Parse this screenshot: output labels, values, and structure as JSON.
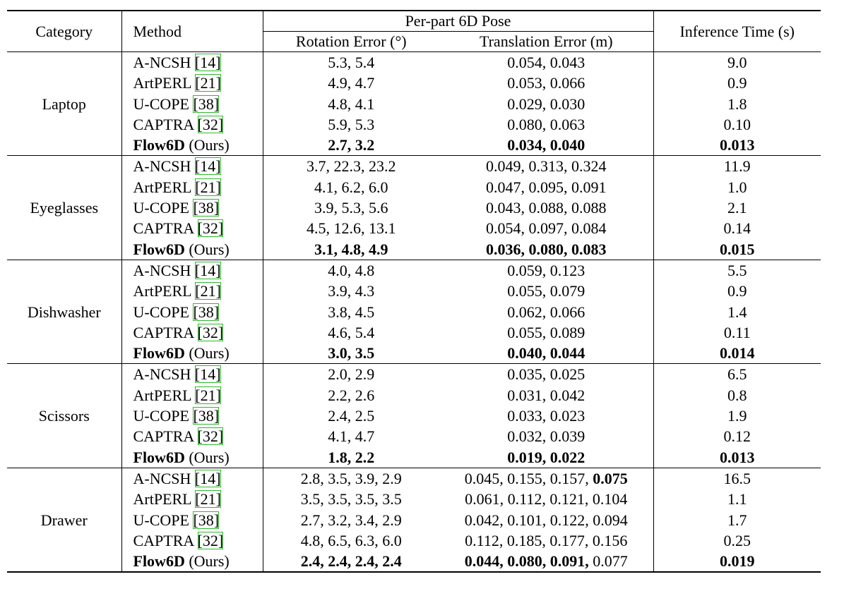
{
  "header": {
    "category": "Category",
    "method": "Method",
    "pose": "Per-part 6D Pose",
    "rotation": "Rotation Error (°)",
    "translation": "Translation Error (m)",
    "time": "Inference Time (s)"
  },
  "groups": [
    {
      "category": "Laptop",
      "rows": [
        {
          "method": [
            {
              "text": "A-NCSH "
            },
            {
              "text": "[14]",
              "cite": true
            }
          ],
          "rotation": "5.3, 5.4",
          "translation": "0.054, 0.043",
          "time": "9.0"
        },
        {
          "method": [
            {
              "text": "ArtPERL "
            },
            {
              "text": "[21]",
              "cite": true
            }
          ],
          "rotation": "4.9, 4.7",
          "translation": "0.053, 0.066",
          "time": "0.9"
        },
        {
          "method": [
            {
              "text": "U-COPE "
            },
            {
              "text": "[38]",
              "cite": true
            }
          ],
          "rotation": "4.8, 4.1",
          "translation": "0.029, 0.030",
          "time": "1.8"
        },
        {
          "method": [
            {
              "text": "CAPTRA "
            },
            {
              "text": "[32]",
              "cite": true
            }
          ],
          "rotation": "5.9, 5.3",
          "translation": "0.080, 0.063",
          "time": "0.10"
        },
        {
          "method": [
            {
              "text": "Flow6D",
              "bold": true
            },
            {
              "text": " (Ours)"
            }
          ],
          "bold": true,
          "rotation": "2.7, 3.2",
          "translation": "0.034, 0.040",
          "time": "0.013"
        }
      ]
    },
    {
      "category": "Eyeglasses",
      "rows": [
        {
          "method": [
            {
              "text": "A-NCSH "
            },
            {
              "text": "[14]",
              "cite": true
            }
          ],
          "rotation": "3.7, 22.3, 23.2",
          "translation": "0.049, 0.313, 0.324",
          "time": "11.9"
        },
        {
          "method": [
            {
              "text": "ArtPERL "
            },
            {
              "text": "[21]",
              "cite": true
            }
          ],
          "rotation": "4.1, 6.2, 6.0",
          "translation": "0.047, 0.095, 0.091",
          "time": "1.0"
        },
        {
          "method": [
            {
              "text": "U-COPE "
            },
            {
              "text": "[38]",
              "cite": true
            }
          ],
          "rotation": "3.9, 5.3, 5.6",
          "translation": "0.043, 0.088, 0.088",
          "time": "2.1"
        },
        {
          "method": [
            {
              "text": "CAPTRA "
            },
            {
              "text": "[32]",
              "cite": true
            }
          ],
          "rotation": "4.5, 12.6, 13.1",
          "translation": "0.054, 0.097, 0.084",
          "time": "0.14"
        },
        {
          "method": [
            {
              "text": "Flow6D",
              "bold": true
            },
            {
              "text": " (Ours)"
            }
          ],
          "bold": true,
          "rotation": "3.1, 4.8, 4.9",
          "translation": "0.036, 0.080, 0.083",
          "time": "0.015"
        }
      ]
    },
    {
      "category": "Dishwasher",
      "rows": [
        {
          "method": [
            {
              "text": "A-NCSH "
            },
            {
              "text": "[14]",
              "cite": true
            }
          ],
          "rotation": "4.0, 4.8",
          "translation": "0.059, 0.123",
          "time": "5.5"
        },
        {
          "method": [
            {
              "text": "ArtPERL "
            },
            {
              "text": "[21]",
              "cite": true
            }
          ],
          "rotation": "3.9, 4.3",
          "translation": "0.055, 0.079",
          "time": "0.9"
        },
        {
          "method": [
            {
              "text": "U-COPE "
            },
            {
              "text": "[38]",
              "cite": true
            }
          ],
          "rotation": "3.8, 4.5",
          "translation": "0.062, 0.066",
          "time": "1.4"
        },
        {
          "method": [
            {
              "text": "CAPTRA "
            },
            {
              "text": "[32]",
              "cite": true
            }
          ],
          "rotation": "4.6, 5.4",
          "translation": "0.055, 0.089",
          "time": "0.11"
        },
        {
          "method": [
            {
              "text": "Flow6D",
              "bold": true
            },
            {
              "text": " (Ours)"
            }
          ],
          "bold": true,
          "rotation": "3.0, 3.5",
          "translation": "0.040, 0.044",
          "time": "0.014"
        }
      ]
    },
    {
      "category": "Scissors",
      "rows": [
        {
          "method": [
            {
              "text": "A-NCSH "
            },
            {
              "text": "[14]",
              "cite": true
            }
          ],
          "rotation": "2.0, 2.9",
          "translation": "0.035, 0.025",
          "time": "6.5"
        },
        {
          "method": [
            {
              "text": "ArtPERL "
            },
            {
              "text": "[21]",
              "cite": true
            }
          ],
          "rotation": "2.2, 2.6",
          "translation": "0.031, 0.042",
          "time": "0.8"
        },
        {
          "method": [
            {
              "text": "U-COPE "
            },
            {
              "text": "[38]",
              "cite": true
            }
          ],
          "rotation": "2.4, 2.5",
          "translation": "0.033, 0.023",
          "time": "1.9"
        },
        {
          "method": [
            {
              "text": "CAPTRA "
            },
            {
              "text": "[32]",
              "cite": true
            }
          ],
          "rotation": "4.1, 4.7",
          "translation": "0.032, 0.039",
          "time": "0.12"
        },
        {
          "method": [
            {
              "text": "Flow6D",
              "bold": true
            },
            {
              "text": " (Ours)"
            }
          ],
          "bold": true,
          "rotation": "1.8, 2.2",
          "translation": "0.019, 0.022",
          "time": "0.013"
        }
      ]
    },
    {
      "category": "Drawer",
      "rows": [
        {
          "method": [
            {
              "text": "A-NCSH "
            },
            {
              "text": "[14]",
              "cite": true
            }
          ],
          "rotation": "2.8, 3.5, 3.9, 2.9",
          "translation": [
            {
              "text": "0.045, 0.155, 0.157, "
            },
            {
              "text": "0.075",
              "bold": true
            }
          ],
          "time": "16.5"
        },
        {
          "method": [
            {
              "text": "ArtPERL "
            },
            {
              "text": "[21]",
              "cite": true
            }
          ],
          "rotation": "3.5, 3.5, 3.5, 3.5",
          "translation": "0.061, 0.112, 0.121, 0.104",
          "time": "1.1"
        },
        {
          "method": [
            {
              "text": "U-COPE "
            },
            {
              "text": "[38]",
              "cite": true
            }
          ],
          "rotation": "2.7, 3.2, 3.4, 2.9",
          "translation": "0.042, 0.101, 0.122, 0.094",
          "time": "1.7"
        },
        {
          "method": [
            {
              "text": "CAPTRA "
            },
            {
              "text": "[32]",
              "cite": true
            }
          ],
          "rotation": "4.8, 6.5, 6.3, 6.0",
          "translation": "0.112, 0.185, 0.177, 0.156",
          "time": "0.25"
        },
        {
          "method": [
            {
              "text": "Flow6D",
              "bold": true
            },
            {
              "text": " (Ours)"
            }
          ],
          "bold": true,
          "rotation": "2.4, 2.4, 2.4, 2.4",
          "translation": [
            {
              "text": "0.044, 0.080, 0.091,",
              "bold": true
            },
            {
              "text": " 0.077"
            }
          ],
          "time": "0.019"
        }
      ]
    }
  ]
}
